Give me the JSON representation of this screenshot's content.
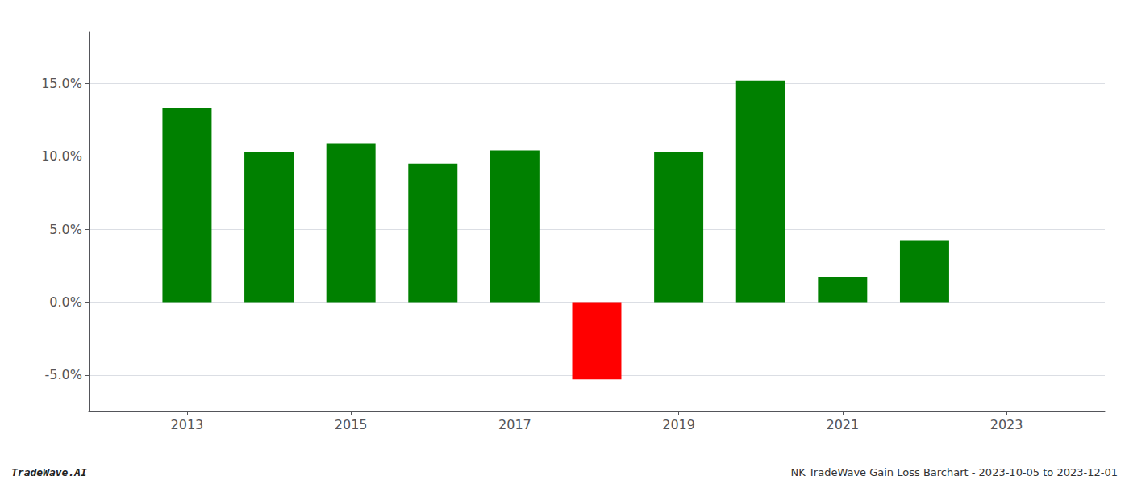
{
  "chart_data": {
    "type": "bar",
    "x": [
      2013,
      2014,
      2015,
      2016,
      2017,
      2018,
      2019,
      2020,
      2021,
      2022
    ],
    "values": [
      0.133,
      0.103,
      0.109,
      0.095,
      0.104,
      -0.053,
      0.103,
      0.152,
      0.017,
      0.042
    ],
    "colors": [
      "#008000",
      "#008000",
      "#008000",
      "#008000",
      "#008000",
      "#ff0000",
      "#008000",
      "#008000",
      "#008000",
      "#008000"
    ],
    "xlim": [
      2011.8,
      2024.2
    ],
    "xticks": [
      2013,
      2015,
      2017,
      2019,
      2021,
      2023
    ],
    "ylim": [
      -0.075,
      0.185
    ],
    "yticks": [
      {
        "value": -0.05,
        "label": "-5.0%"
      },
      {
        "value": 0.0,
        "label": "0.0%"
      },
      {
        "value": 0.05,
        "label": "5.0%"
      },
      {
        "value": 0.1,
        "label": "10.0%"
      },
      {
        "value": 0.15,
        "label": "15.0%"
      }
    ],
    "grid": true,
    "annotations": [
      "TradeWave.AI",
      "NK TradeWave Gain Loss Barchart - 2023-10-05 to 2023-12-01"
    ]
  }
}
